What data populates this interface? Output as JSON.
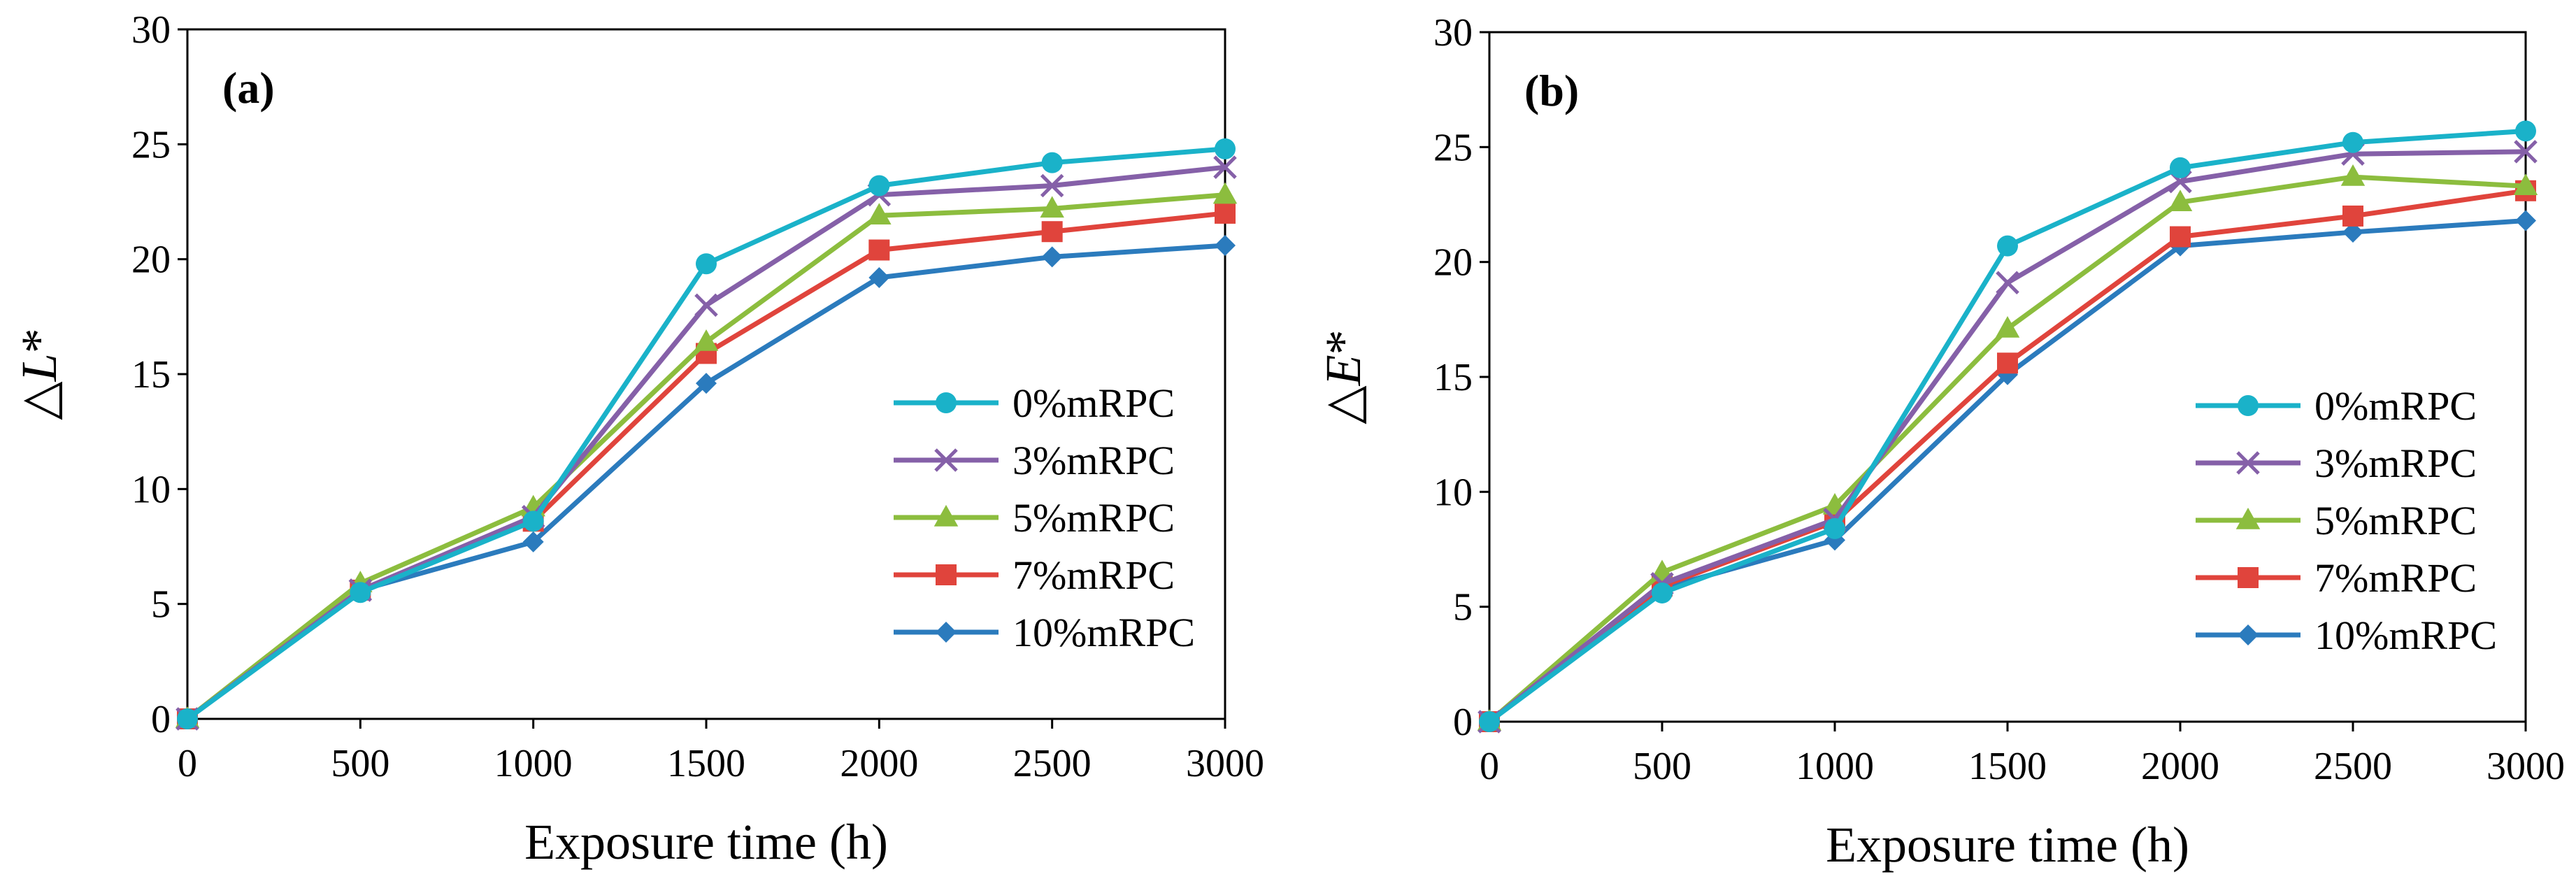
{
  "chart_data": [
    {
      "type": "line",
      "panel_label": "(a)",
      "xlabel": "Exposure time (h)",
      "ylabel": "△L*",
      "ylabel_parts": {
        "prefix": "△",
        "var": "L",
        "suffix": "*"
      },
      "xlim": [
        0,
        3000
      ],
      "ylim": [
        0,
        30
      ],
      "xticks": [
        "0",
        "500",
        "1000",
        "1500",
        "2000",
        "2500",
        "3000"
      ],
      "yticks": [
        "0",
        "5",
        "10",
        "15",
        "20",
        "25",
        "30"
      ],
      "grid": false,
      "legend_position": "right",
      "x": [
        0,
        500,
        1000,
        1500,
        2000,
        2500,
        3000
      ],
      "series": [
        {
          "name": "0%mRPC",
          "color": "#1ab2c9",
          "marker": "circle",
          "values": [
            0,
            5.5,
            8.6,
            19.8,
            23.2,
            24.2,
            24.8
          ]
        },
        {
          "name": "3%mRPC",
          "color": "#8560a8",
          "marker": "x",
          "values": [
            0,
            5.6,
            8.8,
            18.0,
            22.8,
            23.2,
            24.0
          ]
        },
        {
          "name": "5%mRPC",
          "color": "#8cbd3e",
          "marker": "triangle",
          "values": [
            0,
            5.9,
            9.2,
            16.4,
            21.9,
            22.2,
            22.8
          ]
        },
        {
          "name": "7%mRPC",
          "color": "#e0443c",
          "marker": "square",
          "values": [
            0,
            5.6,
            8.6,
            15.9,
            20.4,
            21.2,
            22.0
          ]
        },
        {
          "name": "10%mRPC",
          "color": "#2b7bbd",
          "marker": "diamond",
          "values": [
            0,
            5.6,
            7.7,
            14.6,
            19.2,
            20.1,
            20.6
          ]
        }
      ]
    },
    {
      "type": "line",
      "panel_label": "(b)",
      "xlabel": "Exposure time (h)",
      "ylabel": "△E*",
      "ylabel_parts": {
        "prefix": "△",
        "var": "E",
        "suffix": "*"
      },
      "xlim": [
        0,
        3000
      ],
      "ylim": [
        0,
        30
      ],
      "xticks": [
        "0",
        "500",
        "1000",
        "1500",
        "2000",
        "2500",
        "3000"
      ],
      "yticks": [
        "0",
        "5",
        "10",
        "15",
        "20",
        "25",
        "30"
      ],
      "grid": false,
      "legend_position": "right",
      "x": [
        0,
        500,
        1000,
        1500,
        2000,
        2500,
        3000
      ],
      "series": [
        {
          "name": "0%mRPC",
          "color": "#1ab2c9",
          "marker": "circle",
          "values": [
            0,
            5.6,
            8.4,
            20.7,
            24.1,
            25.2,
            25.7
          ]
        },
        {
          "name": "3%mRPC",
          "color": "#8560a8",
          "marker": "x",
          "values": [
            0,
            6.0,
            8.8,
            19.1,
            23.5,
            24.7,
            24.8
          ]
        },
        {
          "name": "5%mRPC",
          "color": "#8cbd3e",
          "marker": "triangle",
          "values": [
            0,
            6.5,
            9.4,
            17.1,
            22.6,
            23.7,
            23.3
          ]
        },
        {
          "name": "7%mRPC",
          "color": "#e0443c",
          "marker": "square",
          "values": [
            0,
            5.9,
            8.7,
            15.6,
            21.1,
            22.0,
            23.1
          ]
        },
        {
          "name": "10%mRPC",
          "color": "#2b7bbd",
          "marker": "diamond",
          "values": [
            0,
            5.8,
            7.9,
            15.1,
            20.7,
            21.3,
            21.8
          ]
        }
      ]
    }
  ]
}
